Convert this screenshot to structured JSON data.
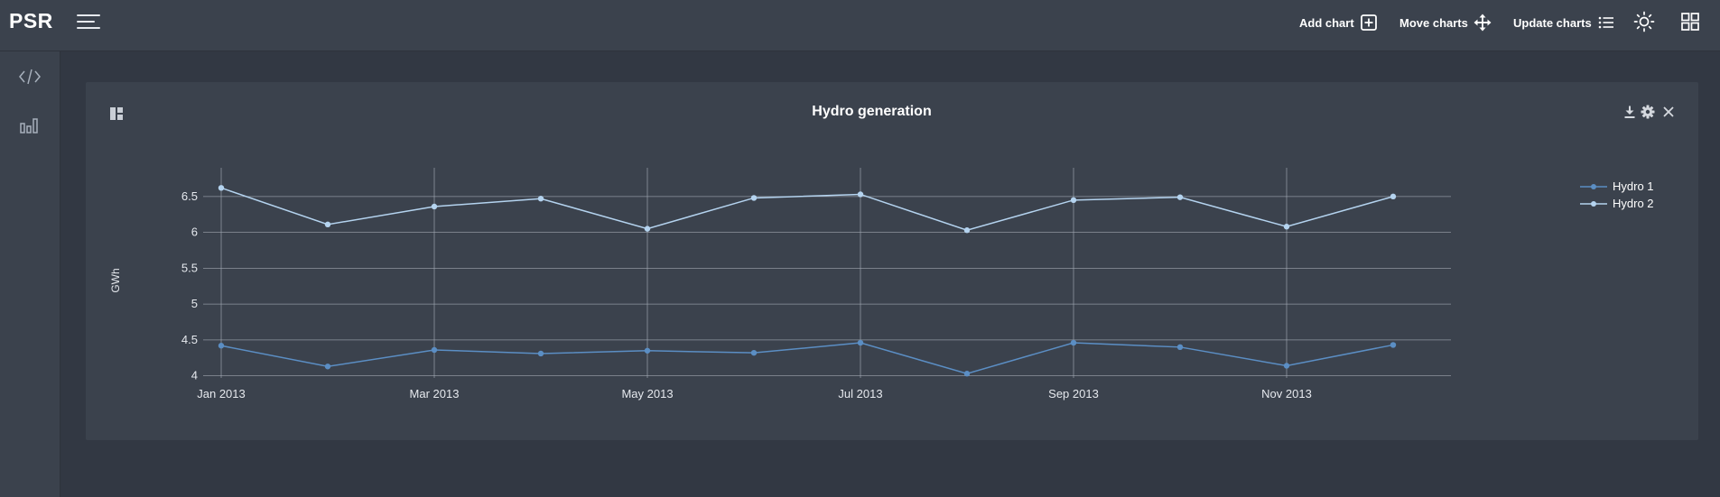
{
  "app": {
    "logo": "PSR"
  },
  "toolbar": {
    "add_chart": "Add chart",
    "move_charts": "Move charts",
    "update_charts": "Update charts"
  },
  "panel": {
    "title": "Hydro generation"
  },
  "colors": {
    "page_bg": "#323843",
    "panel_bg": "#3b424d",
    "series_hydro1": "#5b8ec4",
    "series_hydro2": "#b4d3ef",
    "grid": "#a3aab4"
  },
  "chart_data": {
    "type": "line",
    "title": "Hydro generation",
    "ylabel": "GWh",
    "xlabel": "",
    "x": [
      "2013-01",
      "2013-02",
      "2013-03",
      "2013-04",
      "2013-05",
      "2013-06",
      "2013-07",
      "2013-08",
      "2013-09",
      "2013-10",
      "2013-11",
      "2013-12"
    ],
    "x_tick_labels": [
      "Jan 2013",
      "Mar 2013",
      "May 2013",
      "Jul 2013",
      "Sep 2013",
      "Nov 2013"
    ],
    "x_tick_values": [
      "2013-01",
      "2013-03",
      "2013-05",
      "2013-07",
      "2013-09",
      "2013-11"
    ],
    "y_ticks": [
      "4",
      "4.5",
      "5",
      "5.5",
      "6",
      "6.5"
    ],
    "ylim": [
      3.97,
      6.8
    ],
    "grid": true,
    "legend_position": "top-right",
    "series": [
      {
        "name": "Hydro 1",
        "values": [
          4.42,
          4.13,
          4.36,
          4.31,
          4.35,
          4.32,
          4.46,
          4.03,
          4.46,
          4.4,
          4.14,
          4.43
        ]
      },
      {
        "name": "Hydro 2",
        "values": [
          6.62,
          6.11,
          6.36,
          6.47,
          6.05,
          6.48,
          6.53,
          6.03,
          6.45,
          6.49,
          6.08,
          6.5
        ]
      }
    ]
  }
}
